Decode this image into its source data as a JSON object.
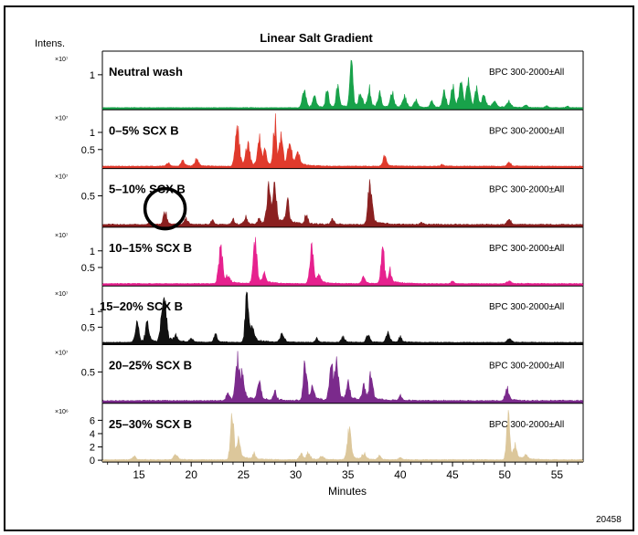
{
  "figure_id": "20458",
  "chart_data": {
    "type": "line",
    "title": "Linear Salt Gradient",
    "ylabel": "Intens.",
    "xlabel": "Minutes",
    "xlim": [
      11.5,
      57.5
    ],
    "xticks": [
      15,
      20,
      25,
      30,
      35,
      40,
      45,
      50,
      55
    ],
    "grid": false,
    "legend": "none",
    "panels": [
      {
        "label": "Neutral wash",
        "trace": "BPC 300-2000±All",
        "multiplier": "×10⁷",
        "color": "#18a24a",
        "ylim": [
          0,
          1.6
        ],
        "yticks": [
          1
        ],
        "baseline": 0.015,
        "peaks": [
          [
            30.8,
            0.55
          ],
          [
            31.8,
            0.35
          ],
          [
            33.0,
            0.6
          ],
          [
            34.0,
            0.7
          ],
          [
            35.3,
            1.55
          ],
          [
            36.2,
            0.45
          ],
          [
            37.0,
            0.65
          ],
          [
            38.0,
            0.55
          ],
          [
            39.2,
            0.5
          ],
          [
            40.4,
            0.35
          ],
          [
            41.5,
            0.25
          ],
          [
            43.0,
            0.3
          ],
          [
            44.2,
            0.55
          ],
          [
            45.0,
            0.75
          ],
          [
            45.8,
            0.85
          ],
          [
            46.5,
            0.8
          ],
          [
            47.3,
            0.65
          ],
          [
            48.0,
            0.5
          ],
          [
            49.0,
            0.25
          ],
          [
            50.4,
            0.2
          ],
          [
            52.0,
            0.08
          ],
          [
            54.0,
            0.06
          ],
          [
            56.0,
            0.05
          ]
        ]
      },
      {
        "label": "0–5% SCX B",
        "trace": "BPC 300-2000±All",
        "multiplier": "×10⁷",
        "color": "#e03a2c",
        "ylim": [
          0,
          1.55
        ],
        "yticks": [
          0.5,
          1.0
        ],
        "baseline": 0.02,
        "peaks": [
          [
            17.8,
            0.1
          ],
          [
            19.2,
            0.2
          ],
          [
            20.5,
            0.25
          ],
          [
            24.4,
            1.25
          ],
          [
            25.4,
            0.7
          ],
          [
            26.5,
            0.9
          ],
          [
            27.0,
            0.55
          ],
          [
            28.0,
            1.5
          ],
          [
            28.6,
            0.9
          ],
          [
            29.4,
            0.75
          ],
          [
            30.2,
            0.4
          ],
          [
            38.5,
            0.35
          ],
          [
            44.0,
            0.06
          ],
          [
            50.4,
            0.12
          ]
        ]
      },
      {
        "label": "5–10% SCX B",
        "trace": "BPC 300-2000±All",
        "multiplier": "×10⁷",
        "color": "#8a2020",
        "ylim": [
          0,
          0.9
        ],
        "yticks": [
          0.5
        ],
        "baseline": 0.02,
        "peaks": [
          [
            16.0,
            0.05
          ],
          [
            17.5,
            0.25
          ],
          [
            19.5,
            0.12
          ],
          [
            22.0,
            0.08
          ],
          [
            24.0,
            0.1
          ],
          [
            25.2,
            0.15
          ],
          [
            26.5,
            0.1
          ],
          [
            27.4,
            0.75
          ],
          [
            28.0,
            0.85
          ],
          [
            29.2,
            0.45
          ],
          [
            31.0,
            0.2
          ],
          [
            33.5,
            0.1
          ],
          [
            37.1,
            0.85
          ],
          [
            42.0,
            0.05
          ],
          [
            50.4,
            0.1
          ]
        ]
      },
      {
        "label": "10–15% SCX B",
        "trace": "BPC 300-2000±All",
        "multiplier": "×10⁷",
        "color": "#e6218e",
        "ylim": [
          0,
          1.6
        ],
        "yticks": [
          0.5,
          1.0
        ],
        "baseline": 0.02,
        "peaks": [
          [
            22.8,
            1.4
          ],
          [
            23.5,
            0.25
          ],
          [
            26.1,
            1.38
          ],
          [
            27.0,
            0.3
          ],
          [
            31.5,
            1.25
          ],
          [
            32.2,
            0.25
          ],
          [
            36.5,
            0.25
          ],
          [
            38.3,
            1.45
          ],
          [
            39.0,
            0.4
          ],
          [
            45.0,
            0.08
          ],
          [
            50.4,
            0.1
          ]
        ]
      },
      {
        "label": "15–20%  SCX B",
        "trace": "BPC 300-2000±All",
        "multiplier": "×10⁷",
        "color": "#111111",
        "ylim": [
          0,
          1.7
        ],
        "yticks": [
          0.5,
          1.0
        ],
        "baseline": 0.02,
        "peaks": [
          [
            14.8,
            0.7
          ],
          [
            15.8,
            0.72
          ],
          [
            17.2,
            0.95
          ],
          [
            17.5,
            1.1
          ],
          [
            18.5,
            0.2
          ],
          [
            20.0,
            0.15
          ],
          [
            22.3,
            0.35
          ],
          [
            25.3,
            1.7
          ],
          [
            25.8,
            0.5
          ],
          [
            28.7,
            0.3
          ],
          [
            32.0,
            0.15
          ],
          [
            34.5,
            0.2
          ],
          [
            36.9,
            0.3
          ],
          [
            38.8,
            0.35
          ],
          [
            40.0,
            0.2
          ],
          [
            50.4,
            0.15
          ]
        ]
      },
      {
        "label": "20–25% SCX B",
        "trace": "BPC 300-2000±All",
        "multiplier": "×10⁷",
        "color": "#7b2a8c",
        "ylim": [
          0,
          0.9
        ],
        "yticks": [
          0.5
        ],
        "baseline": 0.02,
        "peaks": [
          [
            23.5,
            0.15
          ],
          [
            24.4,
            0.8
          ],
          [
            24.9,
            0.55
          ],
          [
            26.5,
            0.35
          ],
          [
            28.0,
            0.2
          ],
          [
            30.9,
            0.8
          ],
          [
            31.6,
            0.25
          ],
          [
            33.4,
            0.65
          ],
          [
            33.9,
            0.75
          ],
          [
            35.0,
            0.4
          ],
          [
            36.5,
            0.3
          ],
          [
            37.2,
            0.55
          ],
          [
            40.0,
            0.1
          ],
          [
            50.2,
            0.25
          ]
        ]
      },
      {
        "label": "25–30% SCX B",
        "trace": "BPC 300-2000±All",
        "multiplier": "×10⁶",
        "color": "#dcc79b",
        "ylim": [
          0,
          8
        ],
        "yticks": [
          0,
          2,
          4,
          6
        ],
        "baseline": 0.1,
        "peaks": [
          [
            14.5,
            0.6
          ],
          [
            18.5,
            1.0
          ],
          [
            23.9,
            8.0
          ],
          [
            24.5,
            3.0
          ],
          [
            26.0,
            1.0
          ],
          [
            30.5,
            1.0
          ],
          [
            31.2,
            1.2
          ],
          [
            32.5,
            0.6
          ],
          [
            35.1,
            5.5
          ],
          [
            36.5,
            1.0
          ],
          [
            38.0,
            0.7
          ],
          [
            40.0,
            0.4
          ],
          [
            50.3,
            7.8
          ],
          [
            51.0,
            2.5
          ],
          [
            52.0,
            1.0
          ]
        ]
      }
    ],
    "annotation": {
      "shape": "circle",
      "panel": "5–10% SCX B",
      "x": 17.5
    }
  }
}
